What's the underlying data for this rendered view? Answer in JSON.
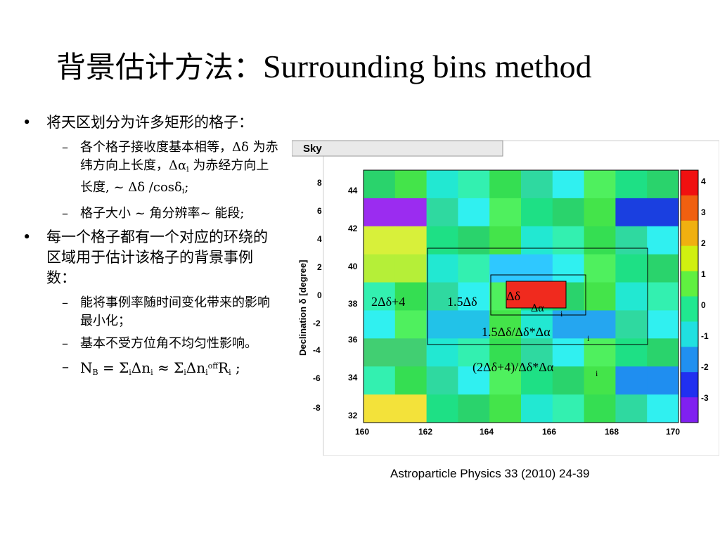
{
  "title": {
    "cjk": "背景估计方法：",
    "en": "Surrounding bins method"
  },
  "bullet1": {
    "text": "将天区划分为许多矩形的格子：",
    "sub1": {
      "a": "各个格子接收度基本相等，",
      "b": "Δδ",
      "c": " 为赤纬方向上长度，",
      "d": "Δα",
      "e": "i",
      "f": " 为赤经方向上长度, ~ Δδ /cosδ",
      "g": "i",
      "h": ";"
    },
    "sub2": "格子大小 ~ 角分辨率~ 能段;"
  },
  "bullet2": {
    "text": "每一个格子都有一个对应的环绕的区域用于估计该格子的背景事例数：",
    "sub1": "能将事例率随时间变化带来的影响最小化；",
    "sub2": "基本不受方位角不均匀性影响。",
    "formula": {
      "a": "N",
      "b": "B",
      "c": " = Σ",
      "d": "i",
      "e": "Δn",
      "f": "i",
      "g": " ≈ Σ",
      "h": "i",
      "k": "Δn",
      "l": "i",
      "m": "off",
      "n": "R",
      "o": "i",
      "p": " ;"
    }
  },
  "plot": {
    "tab_label": "Sky",
    "ylabel": "Declination δ [degree]",
    "x_ticks": [
      "160",
      "162",
      "164",
      "166",
      "168",
      "170"
    ],
    "y_ticks": [
      "44",
      "42",
      "40",
      "38",
      "36",
      "34",
      "32"
    ],
    "y_ticks_partial": [
      "8",
      "6",
      "4",
      "2",
      "0",
      "-2",
      "-4",
      "-6",
      "-8"
    ],
    "colorbar_ticks": [
      "4",
      "3",
      "2",
      "1",
      "0",
      "-1",
      "-2",
      "-3"
    ],
    "annotations": {
      "outer": "2Δδ+4",
      "middle": "1.5Δδ",
      "inner": "Δδ",
      "inner_ra": "Δα",
      "inner_ra_sub": "i",
      "ratio1": "1.5Δδ/Δδ*Δα",
      "ratio1_sub": "i",
      "ratio2": "(2Δδ+4)/Δδ*Δα",
      "ratio2_sub": "i"
    }
  },
  "caption": "Astroparticle Physics 33 (2010) 24-39"
}
